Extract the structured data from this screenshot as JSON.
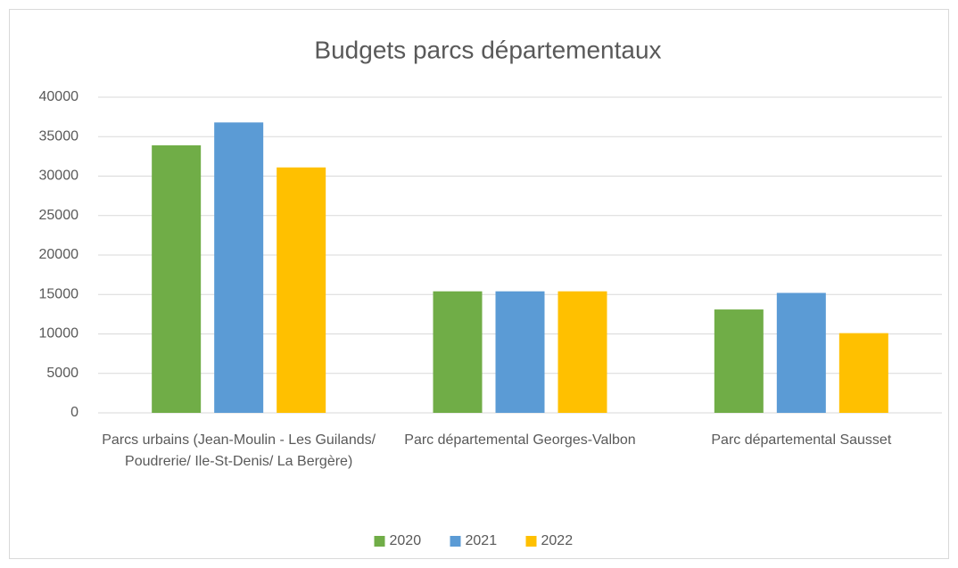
{
  "chart_data": {
    "type": "bar",
    "title": "Budgets parcs départementaux",
    "categories": [
      "Parcs urbains (Jean-Moulin - Les Guilands/ Poudrerie/ Ile-St-Denis/ La Bergère)",
      "Parc départemental Georges-Valbon",
      "Parc départemental Sausset"
    ],
    "series": [
      {
        "name": "2020",
        "color": "#70ad47",
        "values": [
          33900,
          15400,
          13100
        ]
      },
      {
        "name": "2021",
        "color": "#5b9bd5",
        "values": [
          36800,
          15400,
          15200
        ]
      },
      {
        "name": "2022",
        "color": "#ffc000",
        "values": [
          31100,
          15400,
          10100
        ]
      }
    ],
    "ylim": [
      0,
      40000
    ],
    "yticks": [
      0,
      5000,
      10000,
      15000,
      20000,
      25000,
      30000,
      35000,
      40000
    ],
    "grid": true,
    "legend": "bottom"
  }
}
